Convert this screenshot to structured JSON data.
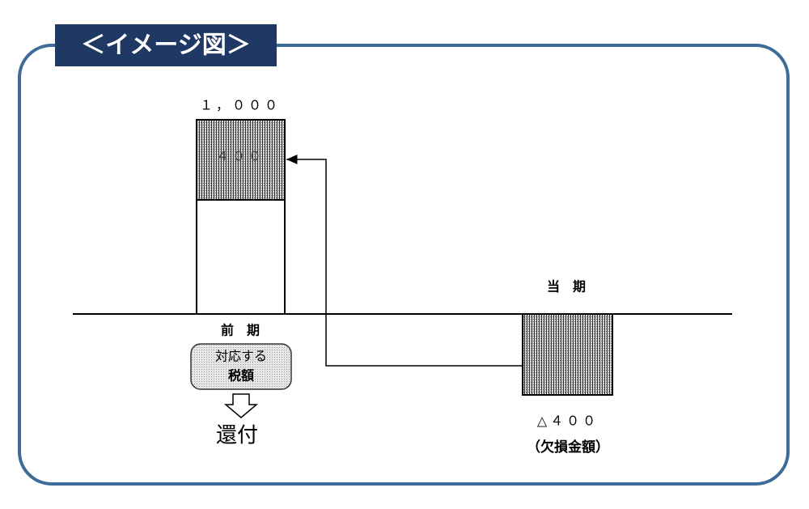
{
  "header": {
    "title": "＜イメージ図＞"
  },
  "previous_period": {
    "total_label": "１，０００",
    "refund_portion_label": "４００",
    "label": "前　期",
    "tax_box": [
      "対応する",
      "税額"
    ],
    "refund_label": "還付"
  },
  "current_period": {
    "label": "当　期",
    "loss_label": "△４００",
    "loss_note": "（欠損金額）"
  }
}
